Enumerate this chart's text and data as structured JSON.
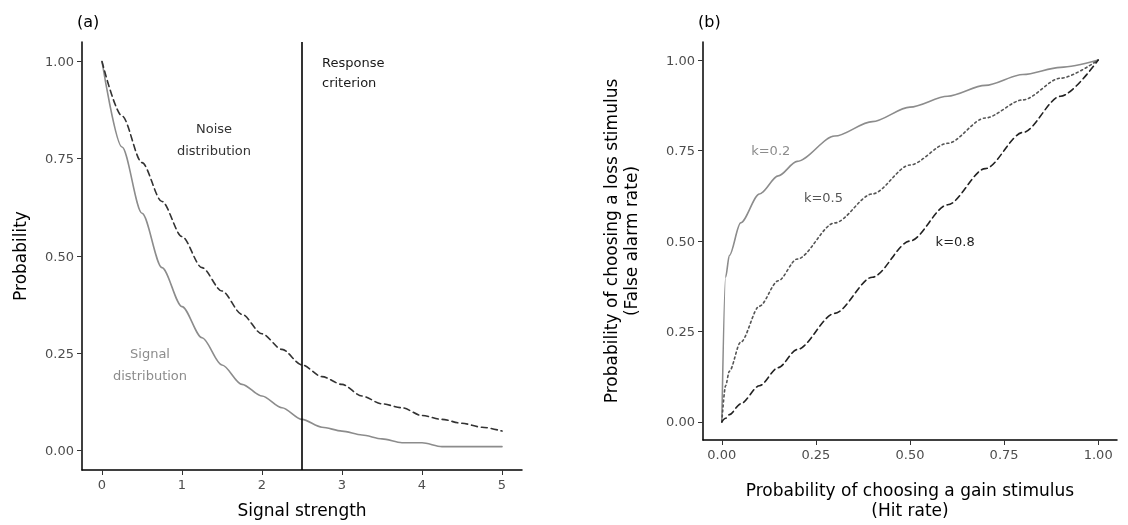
{
  "chart_data": [
    {
      "type": "line",
      "title": "(a)",
      "xlabel": "Signal strength",
      "ylabel": "Probability",
      "x": [
        0,
        0.25,
        0.5,
        0.75,
        1,
        1.25,
        1.5,
        1.75,
        2,
        2.25,
        2.5,
        2.75,
        3,
        3.25,
        3.5,
        3.75,
        4,
        4.25,
        4.5,
        4.75,
        5
      ],
      "series": [
        {
          "name": "Signal\ndistribution",
          "color": "#8c8c8c",
          "line_style": "solid",
          "values": [
            1,
            0.78,
            0.61,
            0.47,
            0.37,
            0.29,
            0.22,
            0.17,
            0.14,
            0.11,
            0.08,
            0.06,
            0.05,
            0.04,
            0.03,
            0.02,
            0.02,
            0.01,
            0.01,
            0.01,
            0.01
          ]
        },
        {
          "name": "Noise\ndistribution",
          "color": "#333333",
          "line_style": "dashed",
          "values": [
            1,
            0.86,
            0.74,
            0.64,
            0.55,
            0.47,
            0.41,
            0.35,
            0.3,
            0.26,
            0.22,
            0.19,
            0.17,
            0.14,
            0.12,
            0.11,
            0.09,
            0.08,
            0.07,
            0.06,
            0.05
          ]
        }
      ],
      "xlim": [
        -0.25,
        5.25
      ],
      "xticks": [
        0,
        1,
        2,
        3,
        4,
        5
      ],
      "ylim": [
        -0.05,
        1.05
      ],
      "yticks": [
        {
          "value": 0,
          "label": "0.00"
        },
        {
          "value": 0.25,
          "label": "0.25"
        },
        {
          "value": 0.5,
          "label": "0.50"
        },
        {
          "value": 0.75,
          "label": "0.75"
        },
        {
          "value": 1,
          "label": "1.00"
        }
      ],
      "ref_lines": [
        {
          "axis": "x",
          "value": 2.5,
          "label": "Response\ncriterion",
          "color": "#000000"
        }
      ],
      "grid": false,
      "marker": "none"
    },
    {
      "type": "line",
      "title": "(b)",
      "xlabel": "Probability of choosing a gain stimulus\n(Hit rate)",
      "ylabel": "Probability of choosing a loss stimulus\n(False alarm rate)",
      "x": [
        0,
        0.01,
        0.02,
        0.05,
        0.1,
        0.15,
        0.2,
        0.3,
        0.4,
        0.5,
        0.6,
        0.7,
        0.8,
        0.9,
        1
      ],
      "series": [
        {
          "name": "k=0.2",
          "color": "#8c8c8c",
          "line_style": "solid",
          "values": [
            0,
            0.4,
            0.46,
            0.55,
            0.63,
            0.68,
            0.72,
            0.79,
            0.83,
            0.87,
            0.9,
            0.93,
            0.96,
            0.98,
            1
          ]
        },
        {
          "name": "k=0.5",
          "color": "#555555",
          "line_style": "dotted",
          "values": [
            0,
            0.1,
            0.14,
            0.22,
            0.32,
            0.39,
            0.45,
            0.55,
            0.63,
            0.71,
            0.77,
            0.84,
            0.89,
            0.95,
            1
          ]
        },
        {
          "name": "k=0.8",
          "color": "#222222",
          "line_style": "dashed",
          "values": [
            0,
            0.01,
            0.02,
            0.05,
            0.1,
            0.15,
            0.2,
            0.3,
            0.4,
            0.5,
            0.6,
            0.7,
            0.8,
            0.9,
            1
          ]
        }
      ],
      "xlim": [
        -0.05,
        1.05
      ],
      "xticks": [
        {
          "value": 0,
          "label": "0.00"
        },
        {
          "value": 0.25,
          "label": "0.25"
        },
        {
          "value": 0.5,
          "label": "0.50"
        },
        {
          "value": 0.75,
          "label": "0.75"
        },
        {
          "value": 1,
          "label": "1.00"
        }
      ],
      "ylim": [
        -0.05,
        1.05
      ],
      "yticks": [
        {
          "value": 0,
          "label": "0.00"
        },
        {
          "value": 0.25,
          "label": "0.25"
        },
        {
          "value": 0.5,
          "label": "0.50"
        },
        {
          "value": 0.75,
          "label": "0.75"
        },
        {
          "value": 1,
          "label": "1.00"
        }
      ],
      "grid": false,
      "marker": "none"
    }
  ]
}
